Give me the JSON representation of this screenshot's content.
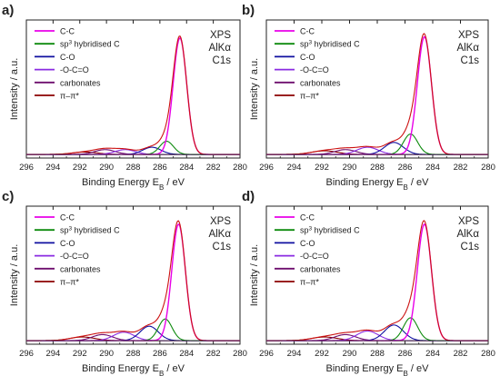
{
  "figure": {
    "xlabel_main": "Binding Energy E",
    "xlabel_sub": "B",
    "xlabel_unit": " / eV",
    "ylabel": "Intensity / a.u."
  },
  "chart_data": [
    {
      "type": "line",
      "panel": "a)",
      "annotation": [
        "XPS",
        "AlKα",
        "C1s"
      ],
      "xlim": [
        296,
        280
      ],
      "x_ticks": [
        296,
        294,
        292,
        290,
        288,
        286,
        284,
        282,
        280
      ],
      "ylim": [
        0,
        1.15
      ],
      "baseline": 0.03,
      "legend": [
        {
          "label": "C-C",
          "color": "#e800e8"
        },
        {
          "label": "sp3 hybridised C",
          "label_main": "sp",
          "label_sup": "3",
          "label_rest": " hybridised C",
          "color": "#0d8a0d"
        },
        {
          "label": "C-O",
          "color": "#1010a0"
        },
        {
          "label": "-O-C=O",
          "color": "#8a2be2"
        },
        {
          "label": "carbonates",
          "color": "#6e0e6e"
        },
        {
          "label": "π–π*",
          "color": "#8b0000"
        }
      ],
      "peaks": [
        {
          "name": "C-C",
          "center": 284.5,
          "height": 0.97,
          "fwhm": 1.2
        },
        {
          "name": "sp3 hybridised C",
          "center": 285.5,
          "height": 0.11,
          "fwhm": 1.2
        },
        {
          "name": "C-O",
          "center": 286.6,
          "height": 0.06,
          "fwhm": 1.6
        },
        {
          "name": "-O-C=O",
          "center": 288.6,
          "height": 0.04,
          "fwhm": 1.8
        },
        {
          "name": "carbonates",
          "center": 290.1,
          "height": 0.04,
          "fwhm": 1.8
        },
        {
          "name": "π–π*",
          "center": 291.6,
          "height": 0.02,
          "fwhm": 2.2
        }
      ]
    },
    {
      "type": "line",
      "panel": "b)",
      "annotation": [
        "XPS",
        "AlKα",
        "C1s"
      ],
      "xlim": [
        296,
        280
      ],
      "x_ticks": [
        296,
        294,
        292,
        290,
        288,
        286,
        284,
        282,
        280
      ],
      "ylim": [
        0,
        1.15
      ],
      "baseline": 0.03,
      "legend": [
        {
          "label": "C-C",
          "color": "#e800e8"
        },
        {
          "label": "sp3 hybridised C",
          "label_main": "sp",
          "label_sup": "3",
          "label_rest": " hybridised C",
          "color": "#0d8a0d"
        },
        {
          "label": "C-O",
          "color": "#1010a0"
        },
        {
          "label": "-O-C=O",
          "color": "#8a2be2"
        },
        {
          "label": "carbonates",
          "color": "#6e0e6e"
        },
        {
          "label": "π–π*",
          "color": "#8b0000"
        }
      ],
      "peaks": [
        {
          "name": "C-C",
          "center": 284.6,
          "height": 0.98,
          "fwhm": 1.2
        },
        {
          "name": "sp3 hybridised C",
          "center": 285.6,
          "height": 0.17,
          "fwhm": 1.2
        },
        {
          "name": "C-O",
          "center": 286.8,
          "height": 0.1,
          "fwhm": 1.6
        },
        {
          "name": "-O-C=O",
          "center": 288.7,
          "height": 0.06,
          "fwhm": 1.8
        },
        {
          "name": "carbonates",
          "center": 290.3,
          "height": 0.04,
          "fwhm": 1.8
        },
        {
          "name": "π–π*",
          "center": 291.8,
          "height": 0.03,
          "fwhm": 2.2
        }
      ]
    },
    {
      "type": "line",
      "panel": "c)",
      "annotation": [
        "XPS",
        "AlKα",
        "C1s"
      ],
      "xlim": [
        296,
        280
      ],
      "x_ticks": [
        296,
        294,
        292,
        290,
        288,
        286,
        284,
        282,
        280
      ],
      "ylim": [
        0,
        1.15
      ],
      "baseline": 0.03,
      "legend": [
        {
          "label": "C-C",
          "color": "#e800e8"
        },
        {
          "label": "sp3 hybridised C",
          "label_main": "sp",
          "label_sup": "3",
          "label_rest": " hybridised C",
          "color": "#0d8a0d"
        },
        {
          "label": "C-O",
          "color": "#1010a0"
        },
        {
          "label": "-O-C=O",
          "color": "#8a2be2"
        },
        {
          "label": "carbonates",
          "color": "#6e0e6e"
        },
        {
          "label": "π–π*",
          "color": "#8b0000"
        }
      ],
      "peaks": [
        {
          "name": "C-C",
          "center": 284.6,
          "height": 0.97,
          "fwhm": 1.2
        },
        {
          "name": "sp3 hybridised C",
          "center": 285.6,
          "height": 0.18,
          "fwhm": 1.2
        },
        {
          "name": "C-O",
          "center": 286.8,
          "height": 0.12,
          "fwhm": 1.6
        },
        {
          "name": "-O-C=O",
          "center": 288.7,
          "height": 0.07,
          "fwhm": 1.8
        },
        {
          "name": "carbonates",
          "center": 290.3,
          "height": 0.05,
          "fwhm": 1.8
        },
        {
          "name": "π–π*",
          "center": 291.8,
          "height": 0.03,
          "fwhm": 2.2
        }
      ]
    },
    {
      "type": "line",
      "panel": "d)",
      "annotation": [
        "XPS",
        "AlKα",
        "C1s"
      ],
      "xlim": [
        296,
        280
      ],
      "x_ticks": [
        296,
        294,
        292,
        290,
        288,
        286,
        284,
        282,
        280
      ],
      "ylim": [
        0,
        1.15
      ],
      "baseline": 0.03,
      "legend": [
        {
          "label": "C-C",
          "color": "#e800e8"
        },
        {
          "label": "sp3 hybridised C",
          "label_main": "sp",
          "label_sup": "3",
          "label_rest": " hybridised C",
          "color": "#0d8a0d"
        },
        {
          "label": "C-O",
          "color": "#1010a0"
        },
        {
          "label": "-O-C=O",
          "color": "#8a2be2"
        },
        {
          "label": "carbonates",
          "color": "#6e0e6e"
        },
        {
          "label": "π–π*",
          "color": "#8b0000"
        }
      ],
      "peaks": [
        {
          "name": "C-C",
          "center": 284.6,
          "height": 0.97,
          "fwhm": 1.2
        },
        {
          "name": "sp3 hybridised C",
          "center": 285.6,
          "height": 0.19,
          "fwhm": 1.2
        },
        {
          "name": "C-O",
          "center": 286.8,
          "height": 0.13,
          "fwhm": 1.6
        },
        {
          "name": "-O-C=O",
          "center": 288.7,
          "height": 0.08,
          "fwhm": 1.8
        },
        {
          "name": "carbonates",
          "center": 290.3,
          "height": 0.05,
          "fwhm": 1.8
        },
        {
          "name": "π–π*",
          "center": 291.8,
          "height": 0.03,
          "fwhm": 2.2
        }
      ]
    }
  ]
}
